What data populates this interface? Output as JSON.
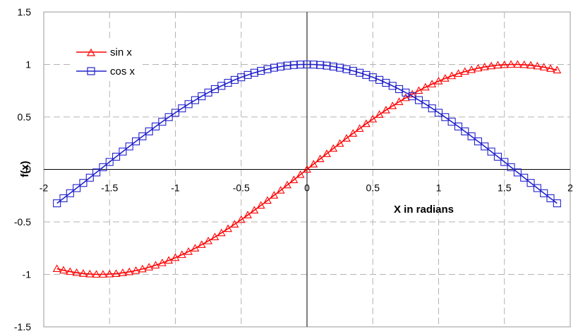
{
  "chart_data": {
    "type": "line",
    "title": "",
    "xlabel": "X in radians",
    "ylabel": "f(x)",
    "xlim": [
      -2,
      2
    ],
    "ylim": [
      -1.5,
      1.5
    ],
    "x_ticks": [
      -2,
      -1.5,
      -1,
      -0.5,
      0,
      0.5,
      1,
      1.5,
      2
    ],
    "x_tick_labels": [
      "-2",
      "-1.5",
      "-1",
      "-0.5",
      "0",
      "0.5",
      "1",
      "1.5",
      "2"
    ],
    "y_ticks": [
      -1.5,
      -1,
      -0.5,
      0,
      0.5,
      1,
      1.5
    ],
    "y_tick_labels": [
      "-1.5",
      "-1",
      "-0.5",
      "0",
      "0.5",
      "1",
      "1.5"
    ],
    "grid": true,
    "legend_position": "top-left",
    "x": [
      -1.9,
      -1.85,
      -1.8,
      -1.75,
      -1.7,
      -1.65,
      -1.6,
      -1.55,
      -1.5,
      -1.45,
      -1.4,
      -1.35,
      -1.3,
      -1.25,
      -1.2,
      -1.15,
      -1.1,
      -1.05,
      -1.0,
      -0.95,
      -0.9,
      -0.85,
      -0.8,
      -0.75,
      -0.7,
      -0.65,
      -0.6,
      -0.55,
      -0.5,
      -0.45,
      -0.4,
      -0.35,
      -0.3,
      -0.25,
      -0.2,
      -0.15,
      -0.1,
      -0.05,
      0.0,
      0.05,
      0.1,
      0.15,
      0.2,
      0.25,
      0.3,
      0.35,
      0.4,
      0.45,
      0.5,
      0.55,
      0.6,
      0.65,
      0.7,
      0.75,
      0.8,
      0.85,
      0.9,
      0.95,
      1.0,
      1.05,
      1.1,
      1.15,
      1.2,
      1.25,
      1.3,
      1.35,
      1.4,
      1.45,
      1.5,
      1.55,
      1.6,
      1.65,
      1.7,
      1.75,
      1.8,
      1.85,
      1.9
    ],
    "series": [
      {
        "name": "sin x",
        "color": "#ff0000",
        "marker": "triangle",
        "values": [
          -0.946,
          -0.961,
          -0.974,
          -0.984,
          -0.992,
          -0.997,
          -1.0,
          -1.0,
          -0.997,
          -0.993,
          -0.985,
          -0.976,
          -0.964,
          -0.949,
          -0.932,
          -0.913,
          -0.891,
          -0.867,
          -0.841,
          -0.813,
          -0.783,
          -0.751,
          -0.717,
          -0.682,
          -0.644,
          -0.605,
          -0.565,
          -0.523,
          -0.479,
          -0.435,
          -0.389,
          -0.343,
          -0.296,
          -0.247,
          -0.199,
          -0.149,
          -0.1,
          -0.05,
          0.0,
          0.05,
          0.1,
          0.149,
          0.199,
          0.247,
          0.296,
          0.343,
          0.389,
          0.435,
          0.479,
          0.523,
          0.565,
          0.605,
          0.644,
          0.682,
          0.717,
          0.751,
          0.783,
          0.813,
          0.841,
          0.867,
          0.891,
          0.913,
          0.932,
          0.949,
          0.964,
          0.976,
          0.985,
          0.993,
          0.997,
          1.0,
          1.0,
          0.997,
          0.992,
          0.984,
          0.974,
          0.961,
          0.946
        ]
      },
      {
        "name": "cos x",
        "color": "#2222cc",
        "marker": "square",
        "values": [
          -0.323,
          -0.275,
          -0.227,
          -0.178,
          -0.129,
          -0.079,
          -0.029,
          0.021,
          0.071,
          0.121,
          0.17,
          0.219,
          0.267,
          0.315,
          0.362,
          0.409,
          0.454,
          0.498,
          0.54,
          0.582,
          0.622,
          0.66,
          0.697,
          0.732,
          0.765,
          0.796,
          0.825,
          0.853,
          0.878,
          0.9,
          0.921,
          0.939,
          0.955,
          0.969,
          0.98,
          0.989,
          0.995,
          0.999,
          1.0,
          0.999,
          0.995,
          0.989,
          0.98,
          0.969,
          0.955,
          0.939,
          0.921,
          0.9,
          0.878,
          0.853,
          0.825,
          0.796,
          0.765,
          0.732,
          0.697,
          0.66,
          0.622,
          0.582,
          0.54,
          0.498,
          0.454,
          0.409,
          0.362,
          0.315,
          0.267,
          0.219,
          0.17,
          0.121,
          0.071,
          0.021,
          -0.029,
          -0.079,
          -0.129,
          -0.178,
          -0.227,
          -0.275,
          -0.323
        ]
      }
    ]
  }
}
